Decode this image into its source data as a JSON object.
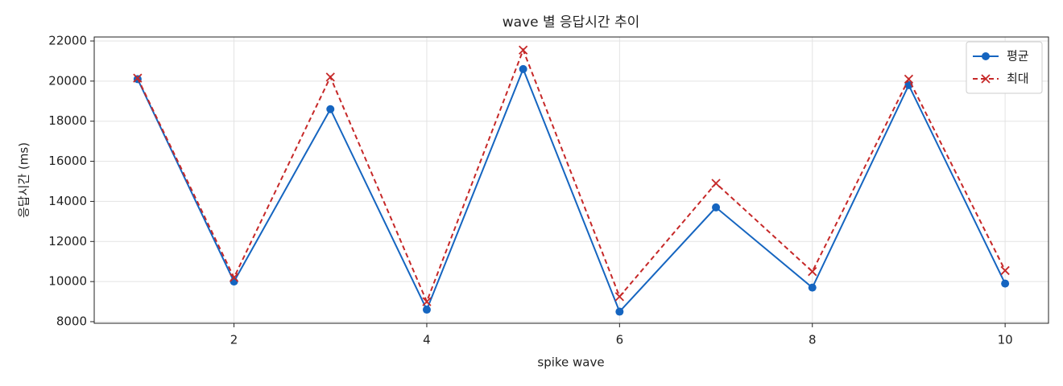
{
  "chart_data": {
    "type": "line",
    "title": "wave 별 응답시간 추이",
    "x_label": "spike wave",
    "y_label": "응답시간 (ms)",
    "x": [
      1,
      2,
      3,
      4,
      5,
      6,
      7,
      8,
      9,
      10
    ],
    "series": [
      {
        "name": "평균",
        "color": "#1565c0",
        "marker": "o",
        "linestyle": "solid",
        "values": [
          20100,
          10000,
          18600,
          8600,
          20600,
          8500,
          13700,
          9700,
          19800,
          9900
        ]
      },
      {
        "name": "최대",
        "color": "#c62828",
        "marker": "x",
        "linestyle": "dashed",
        "values": [
          20150,
          10200,
          20200,
          9000,
          21550,
          9250,
          14900,
          10500,
          20100,
          10550
        ]
      }
    ],
    "xlim": [
      0.55,
      10.45
    ],
    "xticks": [
      2,
      4,
      6,
      8,
      10
    ],
    "ylim": [
      7920,
      22200
    ],
    "yticks": [
      8000,
      10000,
      12000,
      14000,
      16000,
      18000,
      20000,
      22000
    ],
    "grid": true,
    "legend": "upper right"
  }
}
